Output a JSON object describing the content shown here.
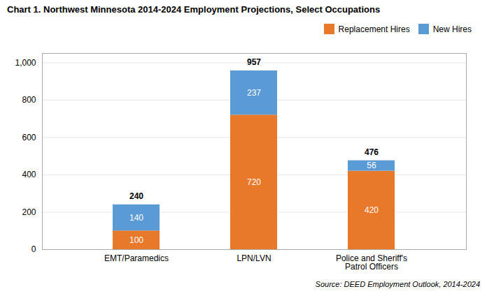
{
  "chart_data": {
    "type": "bar",
    "stacked": true,
    "title": "Chart 1. Northwest Minnesota 2014-2024 Employment Projections, Select Occupations",
    "source": "Source: DEED Employment Outlook, 2014-2024",
    "categories": [
      "EMT/Paramedics",
      "LPN/LVN",
      "Police and Sheriff's\nPatrol Officers"
    ],
    "series": [
      {
        "name": "Replacement Hires",
        "color": "#E8792A",
        "values": [
          100,
          720,
          420
        ]
      },
      {
        "name": "New Hires",
        "color": "#5B9BD5",
        "values": [
          140,
          237,
          56
        ]
      }
    ],
    "totals": [
      240,
      957,
      476
    ],
    "data_labels": true,
    "ylim": [
      0,
      1050
    ],
    "yticks": [
      0,
      200,
      400,
      600,
      800,
      {
        "value": 1000,
        "label": "1,000"
      }
    ],
    "grid": true,
    "legend": "upper right"
  }
}
